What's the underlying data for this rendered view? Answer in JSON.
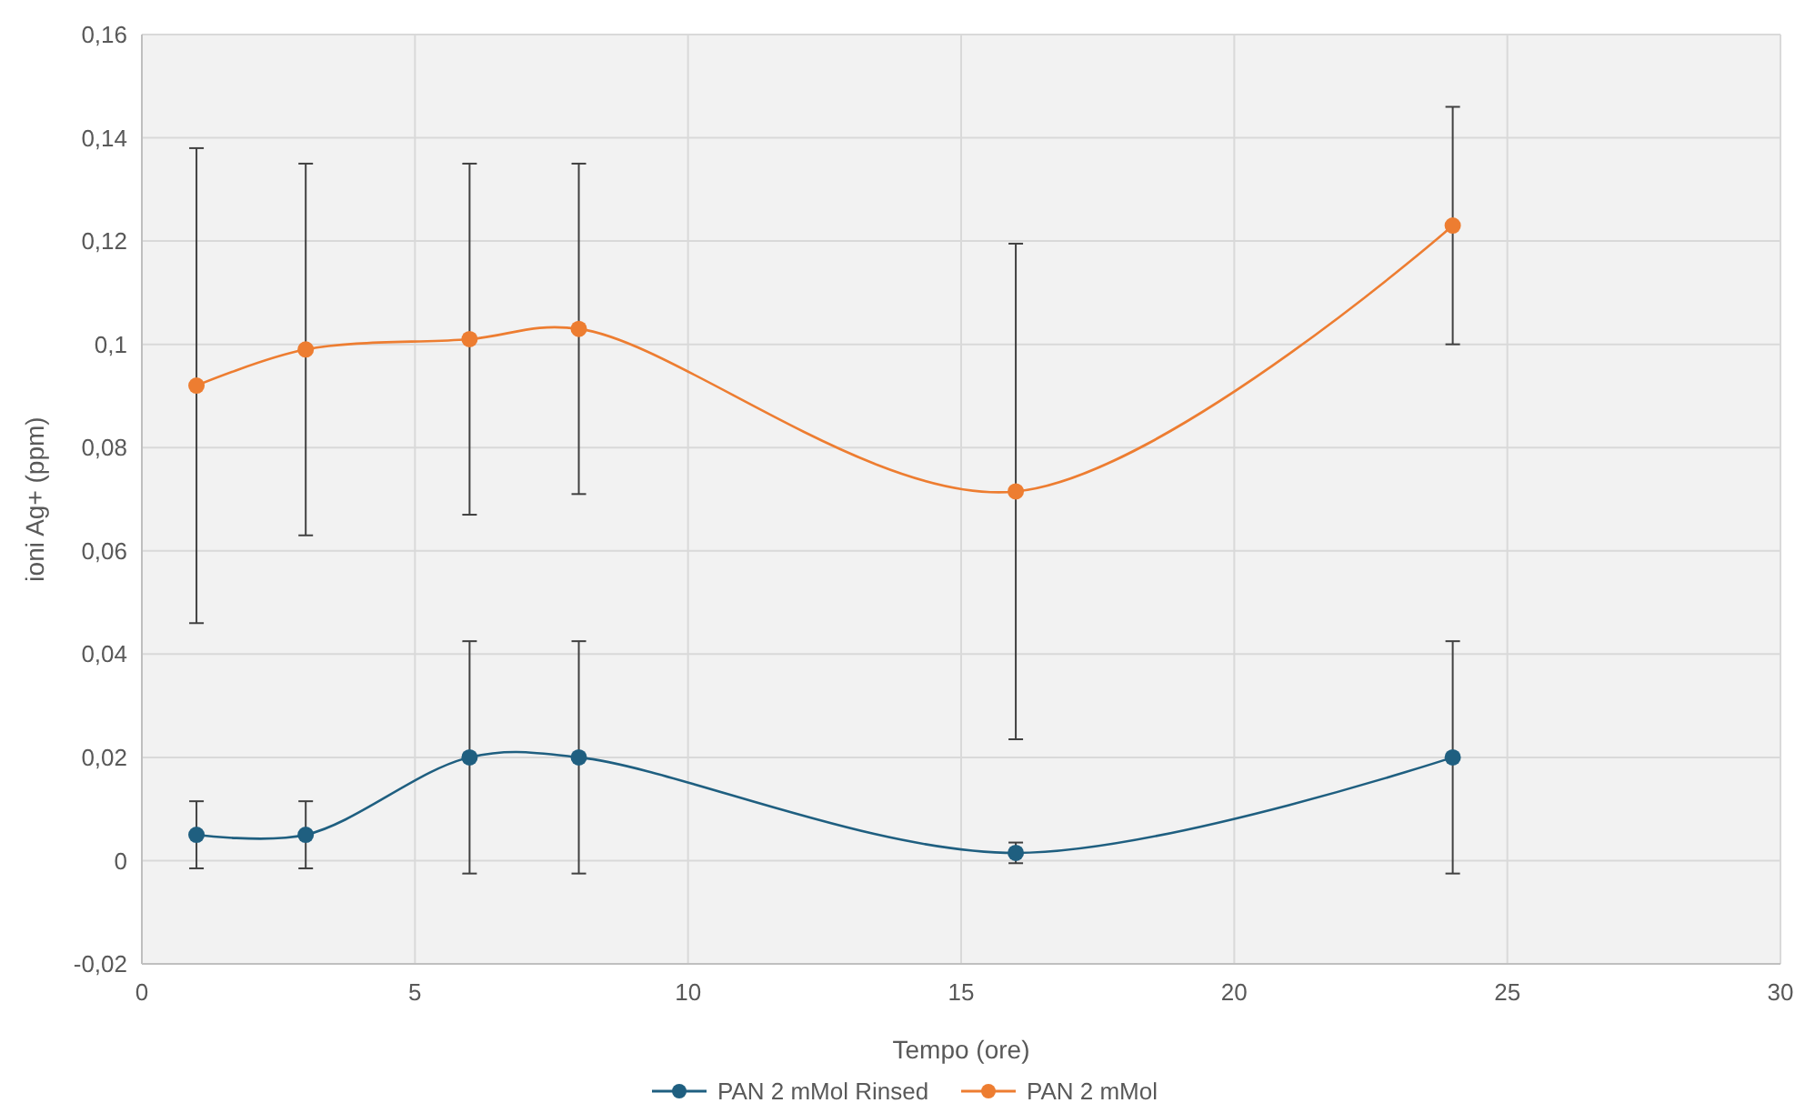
{
  "chart_data": {
    "type": "line",
    "xlabel": "Tempo (ore)",
    "ylabel": "ioni Ag+ (ppm)",
    "x": [
      1,
      3,
      6,
      8,
      16,
      24
    ],
    "series": [
      {
        "name": "PAN 2 mMol Rinsed",
        "color": "#1f5f80",
        "values": [
          0.005,
          0.005,
          0.02,
          0.02,
          0.0015,
          0.02
        ],
        "errors": [
          0.0065,
          0.0065,
          0.0225,
          0.0225,
          0.002,
          0.0225
        ]
      },
      {
        "name": "PAN 2 mMol",
        "color": "#ed7d31",
        "values": [
          0.092,
          0.099,
          0.101,
          0.103,
          0.0715,
          0.123
        ],
        "errors": [
          0.046,
          0.036,
          0.034,
          0.032,
          0.048,
          0.023
        ]
      }
    ],
    "xlim": [
      0,
      30
    ],
    "xticks": [
      0,
      5,
      10,
      15,
      20,
      25,
      30
    ],
    "ylim": [
      -0.02,
      0.16
    ],
    "yticks": [
      {
        "value": -0.02,
        "label": "-0,02"
      },
      {
        "value": 0,
        "label": "0"
      },
      {
        "value": 0.02,
        "label": "0,02"
      },
      {
        "value": 0.04,
        "label": "0,04"
      },
      {
        "value": 0.06,
        "label": "0,06"
      },
      {
        "value": 0.08,
        "label": "0,08"
      },
      {
        "value": 0.1,
        "label": "0,1"
      },
      {
        "value": 0.12,
        "label": "0,12"
      },
      {
        "value": 0.14,
        "label": "0,14"
      },
      {
        "value": 0.16,
        "label": "0,16"
      }
    ],
    "grid": true,
    "legend": "bottom",
    "marker": "circle",
    "line_style": "solid"
  }
}
